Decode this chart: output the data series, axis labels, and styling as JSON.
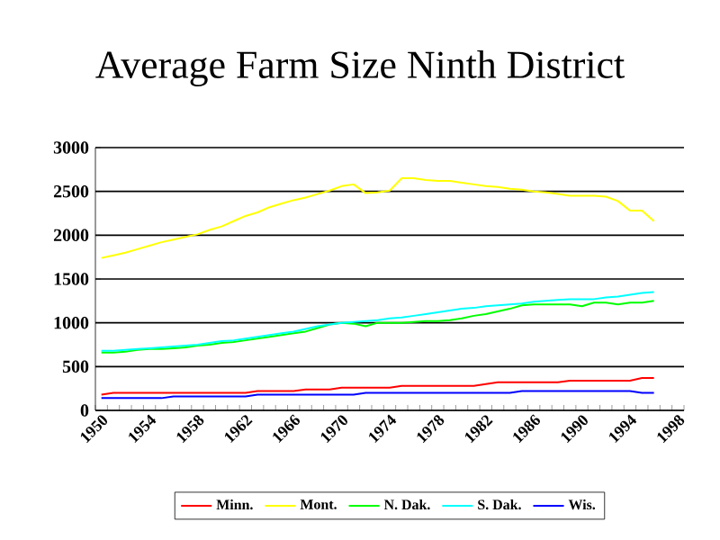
{
  "chart_data": {
    "type": "line",
    "title": "Average Farm Size Ninth District",
    "categories": [
      "1950",
      null,
      null,
      null,
      "1954",
      null,
      null,
      null,
      "1958",
      null,
      null,
      null,
      "1962",
      null,
      null,
      null,
      "1966",
      null,
      null,
      null,
      "1970",
      null,
      null,
      null,
      "1974",
      null,
      null,
      null,
      "1978",
      null,
      null,
      null,
      "1982",
      null,
      null,
      null,
      "1986",
      null,
      null,
      null,
      "1990",
      null,
      null,
      null,
      "1994",
      null,
      null,
      null,
      "1998"
    ],
    "series": [
      {
        "name": "Minn.",
        "color": "#ff0000",
        "values": [
          180,
          200,
          200,
          200,
          200,
          200,
          200,
          200,
          200,
          200,
          200,
          200,
          200,
          220,
          220,
          220,
          220,
          240,
          240,
          240,
          260,
          260,
          260,
          260,
          260,
          280,
          280,
          280,
          280,
          280,
          280,
          280,
          300,
          320,
          320,
          320,
          320,
          320,
          320,
          340,
          340,
          340,
          340,
          340,
          340,
          370,
          370,
          null,
          null
        ]
      },
      {
        "name": "Mont.",
        "color": "#ffff00",
        "values": [
          1740,
          1770,
          1800,
          1840,
          1880,
          1920,
          1950,
          1980,
          2010,
          2060,
          2100,
          2160,
          2220,
          2260,
          2320,
          2360,
          2400,
          2430,
          2470,
          2510,
          2560,
          2580,
          2480,
          2490,
          2510,
          2650,
          2650,
          2630,
          2620,
          2620,
          2600,
          2580,
          2560,
          2550,
          2530,
          2520,
          2500,
          2490,
          2470,
          2450,
          2450,
          2450,
          2440,
          2390,
          2280,
          2280,
          2160,
          null,
          null
        ]
      },
      {
        "name": "N. Dak.",
        "color": "#00ff00",
        "values": [
          660,
          660,
          670,
          690,
          700,
          700,
          710,
          720,
          740,
          750,
          770,
          780,
          800,
          820,
          840,
          860,
          880,
          900,
          940,
          980,
          1000,
          990,
          960,
          1000,
          1000,
          1000,
          1010,
          1020,
          1020,
          1030,
          1050,
          1080,
          1100,
          1130,
          1160,
          1200,
          1210,
          1210,
          1210,
          1210,
          1190,
          1230,
          1230,
          1210,
          1230,
          1230,
          1250,
          null,
          null
        ]
      },
      {
        "name": "S. Dak.",
        "color": "#00ffff",
        "values": [
          680,
          680,
          690,
          700,
          710,
          720,
          730,
          740,
          750,
          770,
          790,
          800,
          820,
          840,
          860,
          880,
          900,
          930,
          960,
          980,
          1000,
          1010,
          1020,
          1030,
          1050,
          1060,
          1080,
          1100,
          1120,
          1140,
          1160,
          1170,
          1190,
          1200,
          1210,
          1220,
          1240,
          1250,
          1260,
          1270,
          1270,
          1270,
          1290,
          1300,
          1320,
          1340,
          1350,
          null,
          null
        ]
      },
      {
        "name": "Wis.",
        "color": "#0000ff",
        "values": [
          140,
          140,
          140,
          140,
          140,
          140,
          160,
          160,
          160,
          160,
          160,
          160,
          160,
          180,
          180,
          180,
          180,
          180,
          180,
          180,
          180,
          180,
          200,
          200,
          200,
          200,
          200,
          200,
          200,
          200,
          200,
          200,
          200,
          200,
          200,
          220,
          220,
          220,
          220,
          220,
          220,
          220,
          220,
          220,
          220,
          200,
          200,
          null,
          null
        ]
      }
    ],
    "ylim": [
      0,
      3000
    ],
    "yticks": [
      0,
      500,
      1000,
      1500,
      2000,
      2500,
      3000
    ],
    "grid": "y",
    "legend": "bottom",
    "line_style": "solid"
  }
}
